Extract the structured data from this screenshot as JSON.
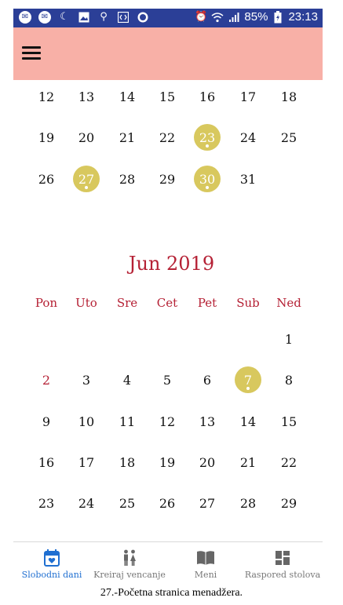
{
  "status_bar": {
    "battery": "85%",
    "time": "23:13",
    "left_icons": [
      "messenger-icon",
      "messenger-icon",
      "moon-icon",
      "image-icon",
      "usb-icon",
      "code-icon",
      "circle-icon"
    ],
    "right_icons": [
      "alarm-icon",
      "wifi-icon",
      "signal-icon",
      "battery-icon"
    ]
  },
  "app_bar": {
    "menu_icon": "hamburger-icon",
    "color": "#f8b0a7"
  },
  "previous_month_partial": {
    "weeks": [
      [
        "12",
        "13",
        "14",
        "15",
        "16",
        "17",
        "18"
      ],
      [
        "19",
        "20",
        "21",
        "22",
        "23",
        "24",
        "25"
      ],
      [
        "26",
        "27",
        "28",
        "29",
        "30",
        "31",
        ""
      ]
    ],
    "marked_days": [
      "23",
      "27",
      "30"
    ]
  },
  "month": {
    "title": "Jun 2019",
    "weekdays": [
      "Pon",
      "Uto",
      "Sre",
      "Cet",
      "Pet",
      "Sub",
      "Ned"
    ],
    "weeks": [
      [
        "",
        "",
        "",
        "",
        "",
        "",
        "1"
      ],
      [
        "2",
        "3",
        "4",
        "5",
        "6",
        "7",
        "8"
      ],
      [
        "9",
        "10",
        "11",
        "12",
        "13",
        "14",
        "15"
      ],
      [
        "16",
        "17",
        "18",
        "19",
        "20",
        "21",
        "22"
      ],
      [
        "23",
        "24",
        "25",
        "26",
        "27",
        "28",
        "29"
      ]
    ],
    "marked_days": [
      "7"
    ],
    "red_days": [
      "2"
    ]
  },
  "bottom_nav": {
    "items": [
      {
        "label": "Slobodni dani",
        "icon": "calendar-heart-icon",
        "active": true
      },
      {
        "label": "Kreiraj vencanje",
        "icon": "couple-icon",
        "active": false
      },
      {
        "label": "Meni",
        "icon": "book-icon",
        "active": false
      },
      {
        "label": "Raspored stolova",
        "icon": "dashboard-icon",
        "active": false
      }
    ]
  },
  "caption": "27.-Početna stranica menadžera.",
  "colors": {
    "accent": "#b52135",
    "marked": "#d8c85e",
    "statusbar": "#2b3f97",
    "active_nav": "#1f6fd1"
  }
}
